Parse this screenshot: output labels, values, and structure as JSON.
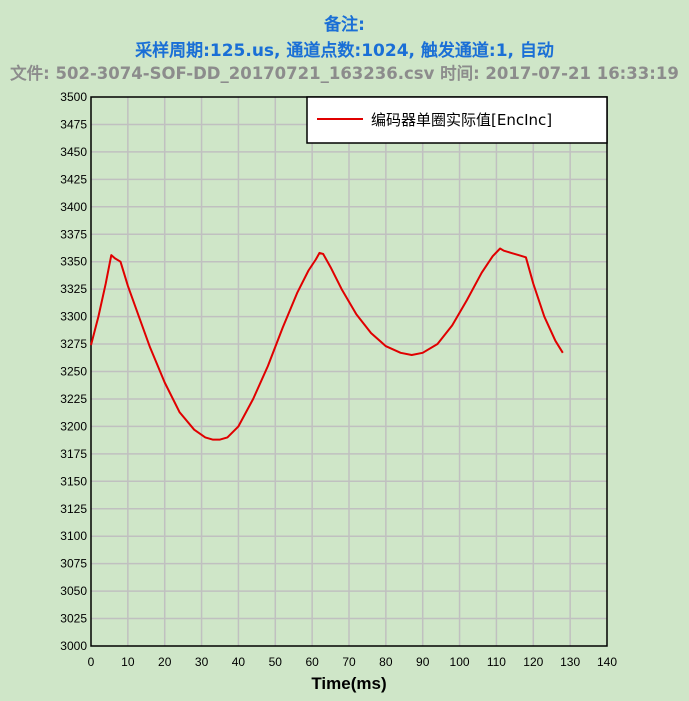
{
  "header": {
    "note": "备注:",
    "params": "采样周期:125.us, 通道点数:1024, 触发通道:1, 自动",
    "fileinfo": "文件: 502-3074-SOF-DD_20170721_163236.csv 时间: 2017-07-21 16:33:19"
  },
  "colors": {
    "background": "#cfe6c8",
    "title": "#1a6fd6",
    "fileinfo": "#8c8c8c",
    "grid": "#c0c0c0",
    "series": "#e00000"
  },
  "chart_data": {
    "type": "line",
    "title": "",
    "xlabel": "Time(ms)",
    "ylabel": "",
    "xlim": [
      0,
      140
    ],
    "ylim": [
      3000,
      3500
    ],
    "xticks": [
      0,
      10,
      20,
      30,
      40,
      50,
      60,
      70,
      80,
      90,
      100,
      110,
      120,
      130,
      140
    ],
    "yticks": [
      3000,
      3025,
      3050,
      3075,
      3100,
      3125,
      3150,
      3175,
      3200,
      3225,
      3250,
      3275,
      3300,
      3325,
      3350,
      3375,
      3400,
      3425,
      3450,
      3475,
      3500
    ],
    "grid": true,
    "legend_position": "top-right",
    "series": [
      {
        "name": "编码器单圈实际值[EncInc]",
        "color": "#e00000",
        "x": [
          0,
          2,
          4,
          5.5,
          6.5,
          8,
          10,
          13,
          16,
          20,
          24,
          28,
          31,
          33,
          35,
          37,
          40,
          44,
          48,
          52,
          56,
          59,
          61,
          62,
          63,
          65,
          68,
          72,
          76,
          80,
          84,
          87,
          90,
          94,
          98,
          102,
          106,
          109,
          111,
          112,
          114,
          116,
          118,
          120,
          123,
          126,
          128
        ],
        "y": [
          3274,
          3300,
          3330,
          3356,
          3353,
          3350,
          3328,
          3300,
          3272,
          3240,
          3213,
          3197,
          3190,
          3188,
          3188,
          3190,
          3200,
          3225,
          3255,
          3290,
          3322,
          3342,
          3352,
          3358,
          3357,
          3345,
          3325,
          3302,
          3285,
          3273,
          3267,
          3265,
          3267,
          3275,
          3292,
          3315,
          3340,
          3355,
          3362,
          3360,
          3358,
          3356,
          3354,
          3330,
          3300,
          3278,
          3267
        ]
      }
    ]
  }
}
